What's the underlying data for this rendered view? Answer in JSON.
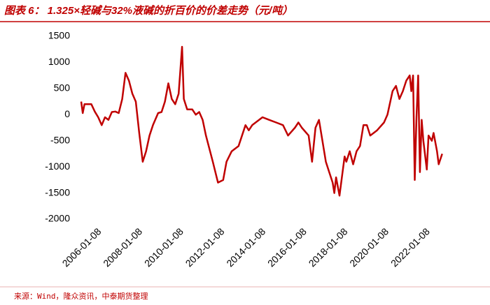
{
  "chart_data": {
    "type": "line",
    "title": "图表 6：  1.325×轻碱与32%液碱的折百价的价差走势（元/吨）",
    "source": "来源：Wind，隆众资讯，中泰期货整理",
    "color": "#c00000",
    "x": [
      "2005-02-08",
      "2005-03-08",
      "2005-04-08",
      "2005-08-08",
      "2005-10-08",
      "2005-12-08",
      "2006-02-08",
      "2006-04-08",
      "2006-06-08",
      "2006-08-08",
      "2006-10-08",
      "2006-12-08",
      "2007-02-08",
      "2007-04-08",
      "2007-06-08",
      "2007-08-08",
      "2007-10-08",
      "2007-12-08",
      "2008-02-08",
      "2008-04-08",
      "2008-06-08",
      "2008-08-08",
      "2008-11-08",
      "2009-01-08",
      "2009-03-08",
      "2009-05-08",
      "2009-07-08",
      "2009-09-08",
      "2009-11-08",
      "2010-01-08",
      "2010-02-08",
      "2010-04-08",
      "2010-07-08",
      "2010-09-08",
      "2010-11-08",
      "2011-01-08",
      "2011-03-08",
      "2011-07-08",
      "2011-10-08",
      "2012-01-08",
      "2012-03-08",
      "2012-06-08",
      "2012-10-08",
      "2013-02-08",
      "2013-04-08",
      "2013-06-08",
      "2013-10-08",
      "2013-12-08",
      "2014-04-08",
      "2014-08-08",
      "2014-12-08",
      "2015-03-08",
      "2015-07-08",
      "2015-09-08",
      "2015-11-08",
      "2016-03-08",
      "2016-05-08",
      "2016-07-08",
      "2016-09-08",
      "2016-11-08",
      "2017-01-08",
      "2017-03-08",
      "2017-05-08",
      "2017-06-08",
      "2017-07-08",
      "2017-09-08",
      "2017-12-08",
      "2018-01-08",
      "2018-03-08",
      "2018-05-08",
      "2018-07-08",
      "2018-09-08",
      "2018-11-08",
      "2019-01-08",
      "2019-03-08",
      "2019-07-08",
      "2019-11-08",
      "2020-01-08",
      "2020-04-08",
      "2020-06-08",
      "2020-08-08",
      "2020-10-08",
      "2020-12-08",
      "2021-02-08",
      "2021-03-08",
      "2021-04-08",
      "2021-05-08",
      "2021-06-08",
      "2021-07-08",
      "2021-08-08",
      "2021-09-08",
      "2021-10-08",
      "2021-12-08",
      "2022-01-08",
      "2022-03-08",
      "2022-04-08",
      "2022-06-08",
      "2022-07-08",
      "2022-09-08"
    ],
    "values": [
      250,
      30,
      200,
      200,
      60,
      -50,
      -200,
      -50,
      -100,
      50,
      60,
      30,
      300,
      800,
      650,
      400,
      250,
      -350,
      -900,
      -700,
      -400,
      -200,
      30,
      50,
      250,
      600,
      300,
      200,
      400,
      1300,
      300,
      100,
      100,
      0,
      50,
      -100,
      -400,
      -900,
      -1300,
      -1250,
      -900,
      -700,
      -600,
      -200,
      -300,
      -200,
      -100,
      -50,
      -100,
      -150,
      -200,
      -400,
      -250,
      -150,
      -250,
      -400,
      -900,
      -250,
      -100,
      -500,
      -900,
      -1100,
      -1300,
      -1500,
      -1200,
      -1550,
      -800,
      -900,
      -700,
      -950,
      -700,
      -600,
      -200,
      -200,
      -400,
      -300,
      -150,
      0,
      450,
      550,
      300,
      450,
      650,
      750,
      450,
      750,
      -1250,
      -50,
      750,
      -1100,
      -100,
      -500,
      -1050,
      -400,
      -500,
      -350,
      -700,
      -950,
      -750
    ],
    "xlim": [
      "2004-12-08",
      "2022-12-08"
    ],
    "xticks": [
      "2006-01-08",
      "2008-01-08",
      "2010-01-08",
      "2012-01-08",
      "2014-01-08",
      "2016-01-08",
      "2018-01-08",
      "2020-01-08",
      "2022-01-08"
    ],
    "ylim": [
      -2000,
      1500
    ],
    "yticks": [
      1500,
      1000,
      500,
      0,
      -500,
      -1000,
      -1500,
      -2000
    ]
  }
}
